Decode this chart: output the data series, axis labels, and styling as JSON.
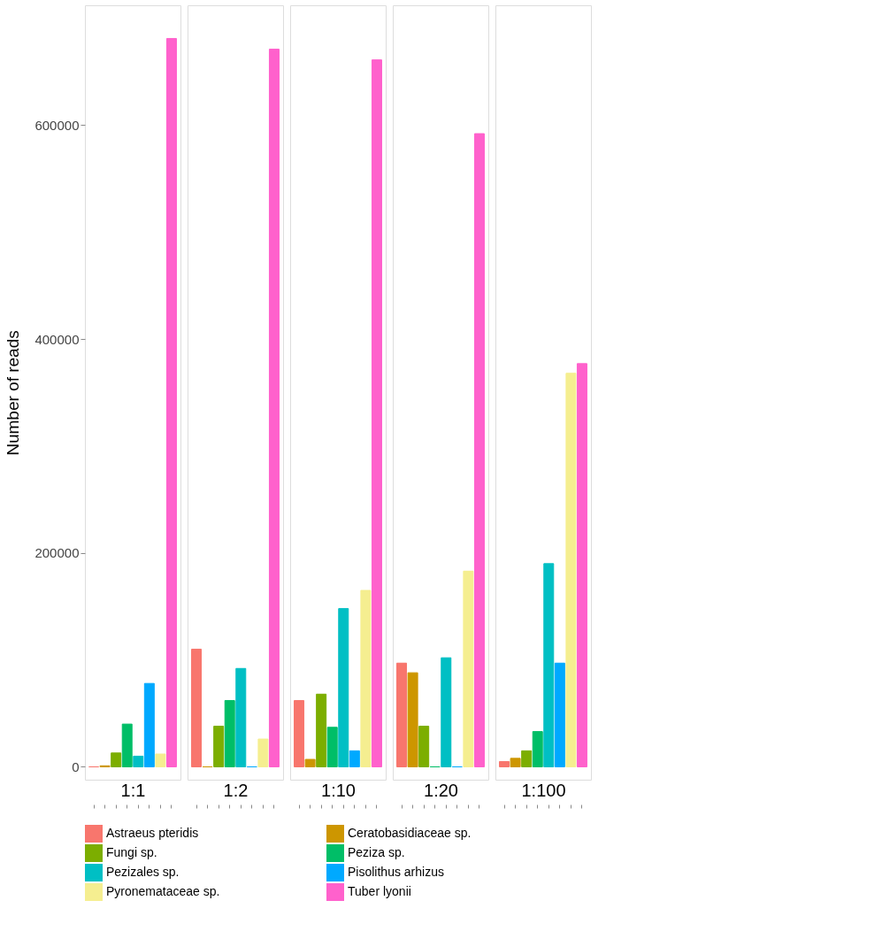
{
  "chart_data": {
    "type": "bar",
    "ylabel": "Number of reads",
    "categories": [
      "1:1",
      "1:2",
      "1:10",
      "1:20",
      "1:100"
    ],
    "series": [
      {
        "name": "Astraeus pteridis",
        "color": "#f8766d",
        "values": [
          0,
          110000,
          62000,
          97000,
          5000
        ]
      },
      {
        "name": "Ceratobasidiaceae sp.",
        "color": "#cd9600",
        "values": [
          1000,
          0,
          7000,
          88000,
          8000
        ]
      },
      {
        "name": "Fungi sp.",
        "color": "#7cae00",
        "values": [
          13000,
          38000,
          68000,
          38000,
          15000
        ]
      },
      {
        "name": "Peziza sp.",
        "color": "#00be67",
        "values": [
          40000,
          62000,
          37000,
          0,
          33000
        ]
      },
      {
        "name": "Pezizales sp.",
        "color": "#00bfc4",
        "values": [
          10000,
          92000,
          148000,
          102000,
          190000
        ]
      },
      {
        "name": "Pisolithus arhizus",
        "color": "#00a9ff",
        "values": [
          78000,
          0,
          15000,
          0,
          97000
        ]
      },
      {
        "name": "Pyronemataceae sp.",
        "color": "#f5ee90",
        "values": [
          12000,
          26000,
          165000,
          183000,
          368000
        ]
      },
      {
        "name": "Tuber lyonii",
        "color": "#ff61cc",
        "values": [
          681000,
          671000,
          661000,
          592000,
          377000
        ]
      }
    ],
    "ylim": [
      -12000,
      712000
    ],
    "yticks": [
      0,
      200000,
      400000,
      600000
    ],
    "grid": false,
    "legend": "bottom"
  }
}
